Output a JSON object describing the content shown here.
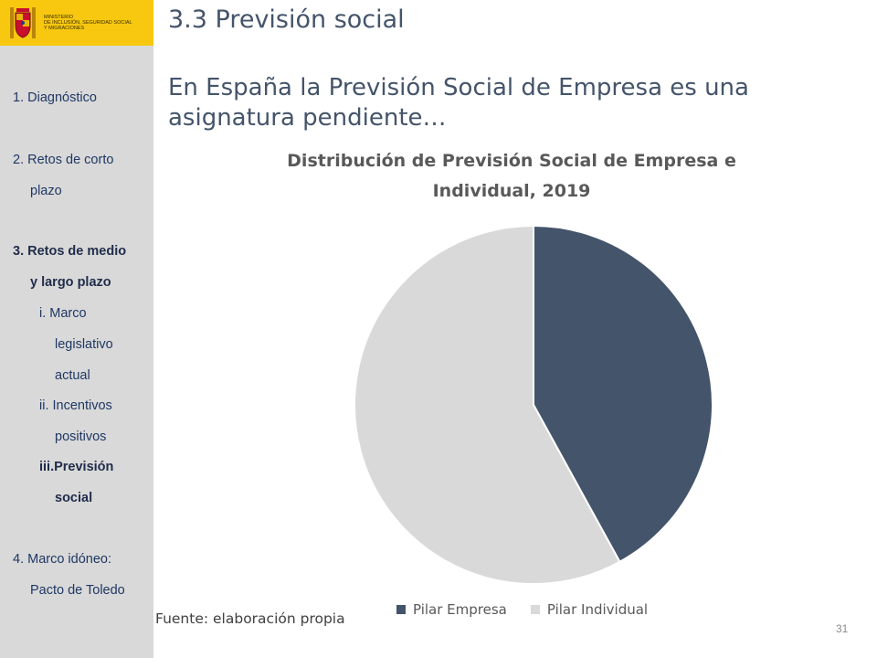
{
  "sidebar": {
    "logo_lines": [
      "MINISTERIO",
      "DE INCLUSIÓN, SEGURIDAD SOCIAL",
      "Y MIGRACIONES"
    ],
    "nav": [
      {
        "label": "1. Diagnóstico",
        "bold": false
      },
      {
        "label": "2. Retos de corto",
        "bold": false
      },
      {
        "label": "plazo",
        "bold": false
      },
      {
        "label": "3. Retos de medio",
        "bold": true
      },
      {
        "label": "y largo plazo",
        "bold": true
      },
      {
        "label": "i.  Marco",
        "bold": false
      },
      {
        "label": "legislativo",
        "bold": false
      },
      {
        "label": "actual",
        "bold": false
      },
      {
        "label": "ii. Incentivos",
        "bold": false
      },
      {
        "label": "positivos",
        "bold": false
      },
      {
        "label": "iii.Previsión",
        "bold": true
      },
      {
        "label": "social",
        "bold": true
      },
      {
        "label": "4. Marco idóneo:",
        "bold": false
      },
      {
        "label": "Pacto de Toledo",
        "bold": false
      }
    ]
  },
  "header": {
    "title": "3.3 Previsión social",
    "subtitle": "En España la Previsión Social de Empresa es una asignatura pendiente…"
  },
  "chart_data": {
    "type": "pie",
    "title": "Distribución de  Previsión Social de Empresa e\nIndividual, 2019",
    "series": [
      {
        "name": "Pilar Empresa",
        "value": 42,
        "color": "#44546a"
      },
      {
        "name": "Pilar Individual",
        "value": 58,
        "color": "#d9d9d9"
      }
    ],
    "legend_position": "bottom"
  },
  "footer": {
    "source": "Fuente: elaboración propia",
    "page_number": "31"
  }
}
